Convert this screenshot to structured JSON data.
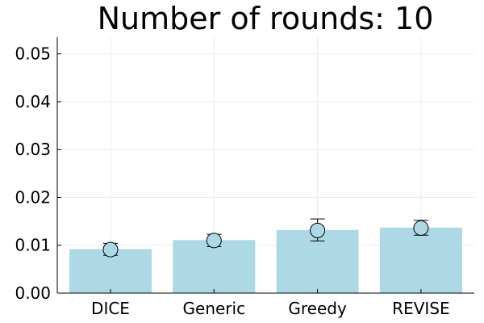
{
  "chart_data": {
    "type": "bar",
    "title": "Number of rounds: 10",
    "xlabel": "",
    "ylabel": "",
    "categories": [
      "DICE",
      "Generic",
      "Greedy",
      "REVISE"
    ],
    "values": [
      0.0092,
      0.0111,
      0.0132,
      0.0137
    ],
    "markers": [
      0.0091,
      0.011,
      0.0131,
      0.0136
    ],
    "error_low": [
      0.0079,
      0.0097,
      0.0109,
      0.0121
    ],
    "error_high": [
      0.0104,
      0.0123,
      0.0155,
      0.0152
    ],
    "ylim": [
      0,
      0.0535
    ],
    "yticks": [
      "0.00",
      "0.01",
      "0.02",
      "0.03",
      "0.04",
      "0.05"
    ],
    "ytick_values": [
      0,
      0.01,
      0.02,
      0.03,
      0.04,
      0.05
    ],
    "grid": true,
    "legend": "none",
    "colors": {
      "bar": "#add8e6",
      "marker": "#add8e6",
      "axis": "#000000",
      "grid": "#ececec"
    }
  }
}
